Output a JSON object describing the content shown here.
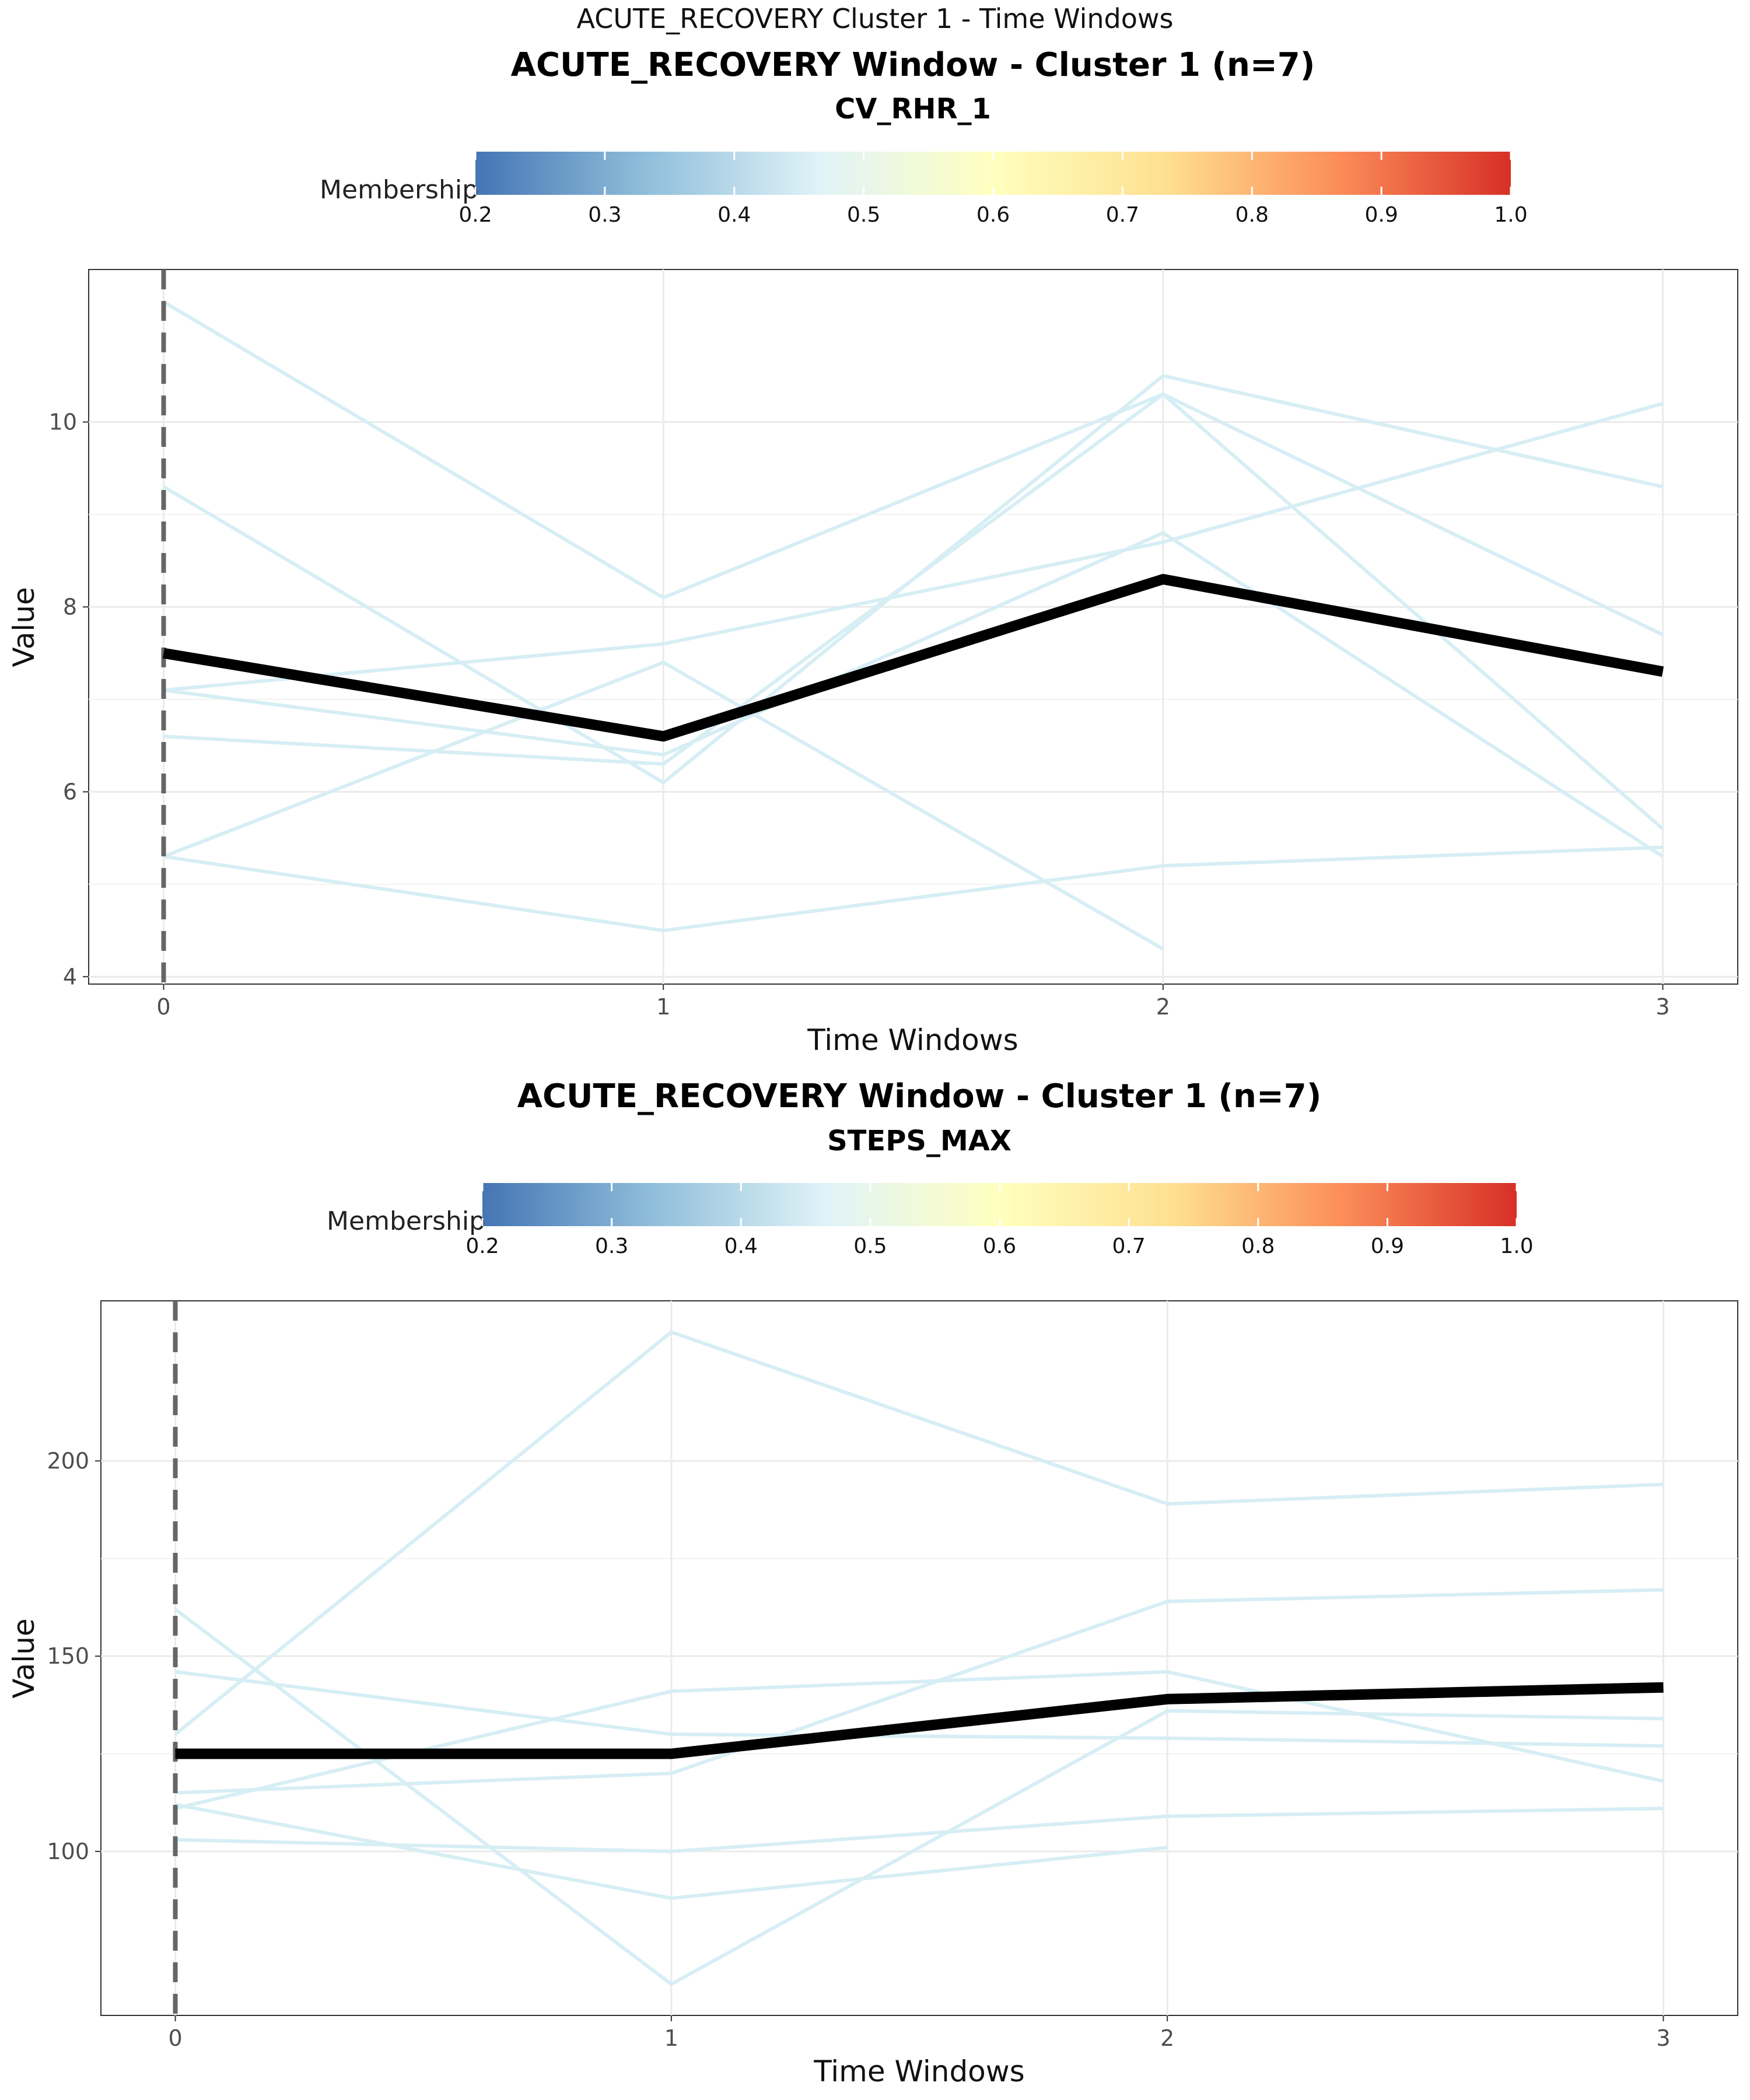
{
  "figure": {
    "supertitle": "ACUTE_RECOVERY Cluster 1 - Time Windows"
  },
  "colors": {
    "scale": [
      "#4575b4",
      "#91bfdb",
      "#e0f3f8",
      "#ffffbf",
      "#fee090",
      "#fc8d59",
      "#d73027"
    ],
    "member_lines": "#d6eef4",
    "mean_line": "#000000",
    "grid": "#ebebeb",
    "vline": "#666666"
  },
  "chart_data": [
    {
      "type": "line",
      "title": "ACUTE_RECOVERY Window - Cluster 1 (n=7)",
      "subtitle": "CV_RHR_1",
      "xlabel": "Time Windows",
      "ylabel": "Value",
      "x": [
        0,
        1,
        2,
        3
      ],
      "xlim": [
        -0.15,
        3.15
      ],
      "ylim": [
        3.92,
        11.65
      ],
      "yticks": [
        4,
        6,
        8,
        10
      ],
      "grid": true,
      "vline_x": 0,
      "legend": {
        "title": "Membership",
        "placement": "top",
        "range": [
          0.2,
          1.0
        ],
        "ticks": [
          "0.2",
          "0.3",
          "0.4",
          "0.5",
          "0.6",
          "0.7",
          "0.8",
          "0.9",
          "1.0"
        ]
      },
      "series": [
        {
          "values": [
            11.3,
            8.1,
            10.3,
            7.7
          ]
        },
        {
          "values": [
            9.3,
            6.1,
            10.5,
            9.3
          ]
        },
        {
          "values": [
            7.1,
            7.6,
            8.7,
            10.2
          ]
        },
        {
          "values": [
            6.6,
            6.3,
            10.3,
            5.6
          ]
        },
        {
          "values": [
            5.3,
            7.4,
            4.3,
            null
          ]
        },
        {
          "values": [
            5.3,
            4.5,
            5.2,
            5.4
          ]
        },
        {
          "values": [
            7.1,
            6.4,
            8.8,
            5.3
          ]
        }
      ],
      "mean": {
        "values": [
          7.5,
          6.6,
          8.3,
          7.3
        ]
      }
    },
    {
      "type": "line",
      "title": "ACUTE_RECOVERY Window - Cluster 1 (n=7)",
      "subtitle": "STEPS_MAX",
      "xlabel": "Time Windows",
      "ylabel": "Value",
      "x": [
        0,
        1,
        2,
        3
      ],
      "xlim": [
        -0.15,
        3.15
      ],
      "ylim": [
        58,
        241
      ],
      "yticks": [
        100,
        150,
        200
      ],
      "grid": true,
      "vline_x": 0,
      "legend": {
        "title": "Membership",
        "placement": "top",
        "range": [
          0.2,
          1.0
        ],
        "ticks": [
          "0.2",
          "0.3",
          "0.4",
          "0.5",
          "0.6",
          "0.7",
          "0.8",
          "0.9",
          "1.0"
        ]
      },
      "series": [
        {
          "values": [
            130,
            233,
            189,
            194
          ]
        },
        {
          "values": [
            162,
            66,
            136,
            134
          ]
        },
        {
          "values": [
            146,
            130,
            129,
            127
          ]
        },
        {
          "values": [
            115,
            120,
            164,
            167
          ]
        },
        {
          "values": [
            111,
            141,
            146,
            118
          ]
        },
        {
          "values": [
            112,
            88,
            101,
            null
          ]
        },
        {
          "values": [
            103,
            100,
            109,
            111
          ]
        }
      ],
      "mean": {
        "values": [
          125,
          125,
          139,
          142
        ]
      }
    }
  ]
}
